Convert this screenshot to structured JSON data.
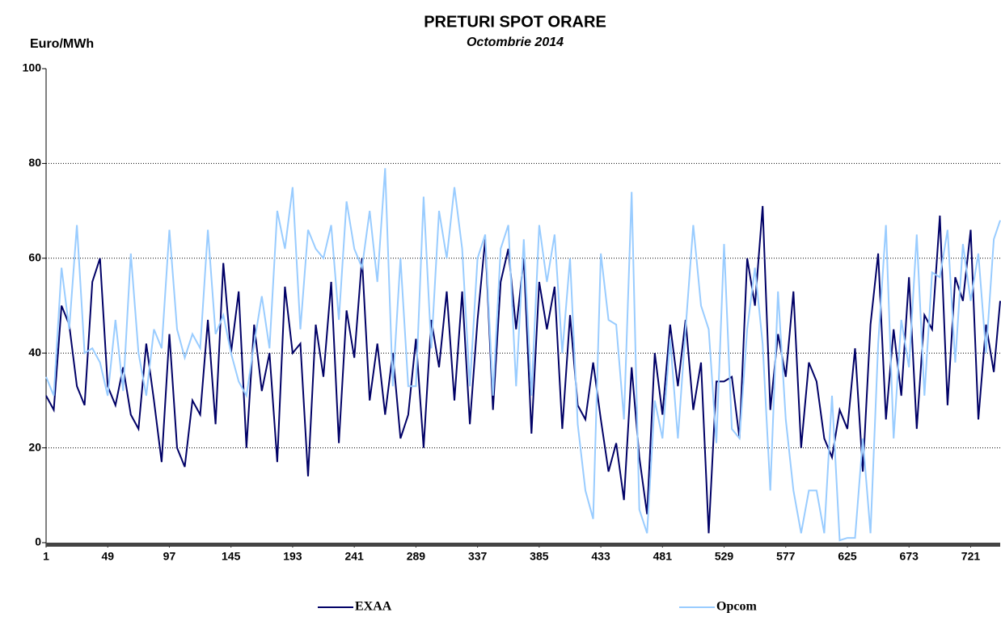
{
  "chart_data": {
    "type": "line",
    "title": "PRETURI SPOT ORARE",
    "subtitle": "Octombrie 2014",
    "y_label": "Euro/MWh",
    "x": [
      1,
      7,
      13,
      19,
      25,
      31,
      37,
      43,
      49,
      55,
      61,
      67,
      73,
      79,
      85,
      91,
      97,
      103,
      109,
      115,
      121,
      127,
      133,
      139,
      145,
      151,
      157,
      163,
      169,
      175,
      181,
      187,
      193,
      199,
      205,
      211,
      217,
      223,
      229,
      235,
      241,
      247,
      253,
      259,
      265,
      271,
      277,
      283,
      289,
      295,
      301,
      307,
      313,
      319,
      325,
      331,
      337,
      343,
      349,
      355,
      361,
      367,
      373,
      379,
      385,
      391,
      397,
      403,
      409,
      415,
      421,
      427,
      433,
      439,
      445,
      451,
      457,
      463,
      469,
      475,
      481,
      487,
      493,
      499,
      505,
      511,
      517,
      523,
      529,
      535,
      541,
      547,
      553,
      559,
      565,
      571,
      577,
      583,
      589,
      595,
      601,
      607,
      613,
      619,
      625,
      631,
      637,
      643,
      649,
      655,
      661,
      667,
      673,
      679,
      685,
      691,
      697,
      703,
      709,
      715,
      721,
      727,
      733,
      739,
      744
    ],
    "series": [
      {
        "name": "EXAA",
        "color": "#000066",
        "values": [
          31,
          28,
          50,
          46,
          33,
          29,
          55,
          60,
          33,
          29,
          37,
          27,
          24,
          42,
          30,
          17,
          44,
          20,
          16,
          30,
          27,
          47,
          25,
          59,
          40,
          53,
          20,
          46,
          32,
          40,
          17,
          54,
          40,
          42,
          14,
          46,
          35,
          55,
          21,
          49,
          39,
          60,
          30,
          42,
          27,
          40,
          22,
          27,
          43,
          20,
          47,
          37,
          53,
          30,
          53,
          25,
          47,
          64,
          28,
          55,
          62,
          45,
          60,
          23,
          55,
          45,
          54,
          24,
          48,
          29,
          26,
          38,
          26,
          15,
          21,
          9,
          37,
          18,
          6,
          40,
          27,
          46,
          33,
          47,
          28,
          38,
          2,
          34,
          34,
          35,
          22,
          60,
          50,
          71,
          28,
          44,
          35,
          53,
          20,
          38,
          34,
          22,
          18,
          28,
          24,
          41,
          15,
          46,
          61,
          26,
          45,
          31,
          56,
          24,
          48,
          45,
          69,
          29,
          56,
          51,
          66,
          26,
          46,
          36,
          51
        ]
      },
      {
        "name": "Opcom",
        "color": "#99ccff",
        "values": [
          35,
          31,
          58,
          45,
          67,
          40,
          41,
          38,
          31,
          47,
          32,
          61,
          40,
          31,
          45,
          41,
          66,
          45,
          39,
          44,
          41,
          66,
          44,
          48,
          40,
          34,
          31,
          42,
          52,
          41,
          70,
          62,
          75,
          45,
          66,
          62,
          60,
          67,
          47,
          72,
          62,
          58,
          70,
          55,
          79,
          33,
          60,
          33,
          33,
          73,
          41,
          70,
          60,
          75,
          62,
          33,
          60,
          65,
          31,
          62,
          67,
          33,
          64,
          31,
          67,
          55,
          65,
          40,
          60,
          25,
          11,
          5,
          61,
          47,
          46,
          26,
          74,
          7,
          2,
          30,
          22,
          43,
          22,
          45,
          67,
          50,
          45,
          21,
          63,
          24,
          22,
          45,
          58,
          42,
          11,
          53,
          26,
          11,
          2,
          11,
          11,
          2,
          31,
          0.5,
          1,
          1,
          22,
          2,
          42,
          67,
          22,
          47,
          37,
          65,
          31,
          57,
          56,
          66,
          38,
          63,
          51,
          61,
          40,
          64,
          68
        ]
      }
    ],
    "xlim": [
      1,
      744
    ],
    "xticks": [
      1,
      49,
      97,
      145,
      193,
      241,
      289,
      337,
      385,
      433,
      481,
      529,
      577,
      625,
      673,
      721
    ],
    "ylim": [
      0,
      100
    ],
    "yticks": [
      0,
      20,
      40,
      60,
      80,
      100
    ],
    "grid": true
  }
}
